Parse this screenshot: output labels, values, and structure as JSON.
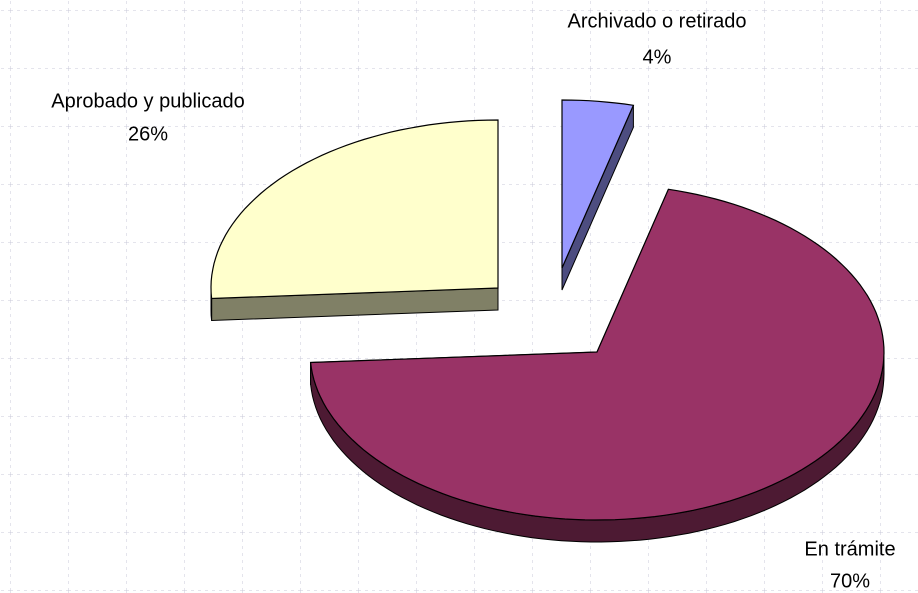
{
  "chart_data": {
    "type": "pie3d",
    "categories": [
      "Archivado o retirado",
      "En trámite",
      "Aprobado y publicado"
    ],
    "values": [
      4,
      70,
      26
    ],
    "value_labels": [
      "4%",
      "70%",
      "26%"
    ],
    "colors": [
      "#9999ff",
      "#993366",
      "#ffffcc"
    ]
  }
}
